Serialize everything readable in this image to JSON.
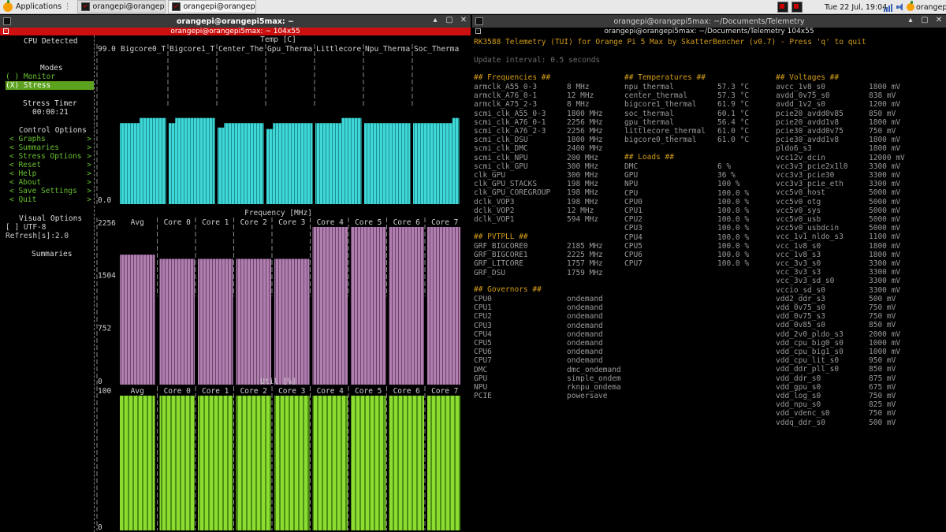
{
  "taskbar": {
    "applications_label": "Applications",
    "tasks": [
      "orangepi@orangepi5ma...",
      "orangepi@orangepi5ma..."
    ],
    "clock": "Tue 22 Jul, 19:04",
    "user": "orangepi"
  },
  "left_window": {
    "title": "orangepi@orangepi5max: ~",
    "subtitle": "orangepi@orangepi5max: ~ 104x55"
  },
  "right_window": {
    "title": "orangepi@orangepi5max: ~/Documents/Telemetry",
    "subtitle": "orangepi@orangepi5max: ~/Documents/Telemetry 104x55"
  },
  "menu": {
    "cpu_detected": "CPU Detected",
    "modes_title": "Modes",
    "monitor": "( ) Monitor",
    "stress": "(X) Stress",
    "stress_timer_title": "Stress Timer",
    "stress_timer": "00:00:21",
    "control_title": "Control Options",
    "controls": [
      "Graphs",
      "Summaries",
      "Stress Options",
      "Reset",
      "Help",
      "About",
      "Save Settings",
      "Quit"
    ],
    "visual_title": "Visual Options",
    "utf8": "[ ] UTF-8",
    "refresh": "Refresh[s]:2.0",
    "summaries_title": "Summaries"
  },
  "chart_data": [
    {
      "type": "bar",
      "title": "Temp [C]",
      "categories": [
        "Bigcore0_T",
        "Bigcore1_T",
        "Center_The",
        "Gpu_Therma",
        "Littlecore",
        "Npu_Therma",
        "Soc_Therma"
      ],
      "ytick_labels": [
        "99.0",
        "0.0"
      ],
      "ylim": [
        0,
        99
      ],
      "values": [
        [
          55.0,
          55.0,
          55.0,
          58.5,
          58.5,
          58.5,
          58.5
        ],
        [
          55.0,
          58.5,
          58.5,
          58.5,
          58.5,
          58.5,
          58.5
        ],
        [
          52.0,
          55.0,
          55.0,
          55.0,
          55.0,
          55.0,
          55.0
        ],
        [
          51.0,
          55.0,
          55.0,
          55.0,
          55.0,
          55.0,
          55.0
        ],
        [
          55.0,
          55.0,
          55.0,
          55.0,
          58.5,
          58.5,
          58.5
        ],
        [
          55.0,
          55.0,
          55.0,
          55.0,
          55.0,
          55.0,
          55.0
        ],
        [
          55.0,
          55.0,
          55.0,
          55.0,
          55.0,
          55.0,
          58.5
        ]
      ]
    },
    {
      "type": "bar",
      "title": "Frequency [MHz]",
      "categories": [
        "Avg",
        "Core 0",
        "Core 1",
        "Core 2",
        "Core 3",
        "Core 4",
        "Core 5",
        "Core 6",
        "Core 7"
      ],
      "ytick_labels": [
        "2256",
        "1504",
        "752",
        "0"
      ],
      "ylim": [
        0,
        2256
      ],
      "values": [
        1860,
        1800,
        1800,
        1800,
        1800,
        2256,
        2256,
        2256,
        2256
      ]
    },
    {
      "type": "bar",
      "title": "Util [%]",
      "categories": [
        "Avg",
        "Core 0",
        "Core 1",
        "Core 2",
        "Core 3",
        "Core 4",
        "Core 5",
        "Core 6",
        "Core 7"
      ],
      "ytick_labels": [
        "100",
        "0"
      ],
      "ylim": [
        0,
        100
      ],
      "values": [
        100,
        100,
        100,
        100,
        100,
        100,
        100,
        100,
        100
      ]
    }
  ],
  "telemetry": {
    "header": "RK3588 Telemetry (TUI) for Orange Pi 5 Max by SkatterBencher (v0.7) - Press 'q' to quit",
    "update_interval": "Update interval: 0.5 seconds",
    "frequencies_title": "## Frequencies ##",
    "frequencies": [
      [
        "armclk_A55_0-3",
        "8 MHz"
      ],
      [
        "armclk_A76_0-1",
        "12 MHz"
      ],
      [
        "armclk_A75_2-3",
        "8 MHz"
      ],
      [
        "scmi_clk_A55_0-3",
        "1800 MHz"
      ],
      [
        "scmi_clk_A76_0-1",
        "2256 MHz"
      ],
      [
        "scmi_clk_A76_2-3",
        "2256 MHz"
      ],
      [
        "scmi_clk_DSU",
        "1800 MHz"
      ],
      [
        "scmi_clk_DMC",
        "2400 MHz"
      ],
      [
        "scmi_clk_NPU",
        "200 MHz"
      ],
      [
        "scmi_clk_GPU",
        "300 MHz"
      ],
      [
        "clk_GPU",
        "300 MHz"
      ],
      [
        "clk_GPU_STACKS",
        "198 MHz"
      ],
      [
        "clk_GPU_COREGROUP",
        "198 MHz"
      ],
      [
        "dclk_VOP3",
        "198 MHz"
      ],
      [
        "dclk_VOP2",
        "12 MHz"
      ],
      [
        "dclk_VOP1",
        "594 MHz"
      ]
    ],
    "pvtpll_title": "## PVTPLL ##",
    "pvtpll": [
      [
        "GRF_BIGCORE0",
        "2185 MHz"
      ],
      [
        "GRF_BIGCORE1",
        "2225 MHz"
      ],
      [
        "GRF_LITCORE",
        "1757 MHz"
      ],
      [
        "GRF_DSU",
        "1759 MHz"
      ]
    ],
    "governors_title": "## Governors ##",
    "governors": [
      [
        "CPU0",
        "ondemand"
      ],
      [
        "CPU1",
        "ondemand"
      ],
      [
        "CPU2",
        "ondemand"
      ],
      [
        "CPU3",
        "ondemand"
      ],
      [
        "CPU4",
        "ondemand"
      ],
      [
        "CPU5",
        "ondemand"
      ],
      [
        "CPU6",
        "ondemand"
      ],
      [
        "CPU7",
        "ondemand"
      ],
      [
        "DMC",
        "dmc_ondemand"
      ],
      [
        "GPU",
        "simple_ondem"
      ],
      [
        "NPU",
        "rknpu_ondema"
      ],
      [
        "PCIE",
        "powersave"
      ]
    ],
    "temps_title": "## Temperatures ##",
    "temps": [
      [
        "npu_thermal",
        "57.3 °C"
      ],
      [
        "center_thermal",
        "57.3 °C"
      ],
      [
        "bigcore1_thermal",
        "61.9 °C"
      ],
      [
        "soc_thermal",
        "60.1 °C"
      ],
      [
        "gpu_thermal",
        "56.4 °C"
      ],
      [
        "littlecore_thermal",
        "61.0 °C"
      ],
      [
        "bigcore0_thermal",
        "61.0 °C"
      ]
    ],
    "loads_title": "## Loads ##",
    "loads": [
      [
        "DMC",
        "6 %"
      ],
      [
        "GPU",
        "36 %"
      ],
      [
        "NPU",
        "100 %"
      ],
      [
        "CPU",
        "100.0 %"
      ],
      [
        "CPU0",
        "100.0 %"
      ],
      [
        "CPU1",
        "100.0 %"
      ],
      [
        "CPU2",
        "100.0 %"
      ],
      [
        "CPU3",
        "100.0 %"
      ],
      [
        "CPU4",
        "100.0 %"
      ],
      [
        "CPU5",
        "100.0 %"
      ],
      [
        "CPU6",
        "100.0 %"
      ],
      [
        "CPU7",
        "100.0 %"
      ]
    ],
    "voltages_title": "## Voltages ##",
    "voltages": [
      [
        "avcc_1v8_s0",
        "1800 mV"
      ],
      [
        "avdd_0v75_s0",
        "838 mV"
      ],
      [
        "avdd_1v2_s0",
        "1200 mV"
      ],
      [
        "pcie20_avdd0v85",
        "850 mV"
      ],
      [
        "pcie20_avdd1v8",
        "1800 mV"
      ],
      [
        "pcie30_avdd0v75",
        "750 mV"
      ],
      [
        "pcie30_avdd1v8",
        "1800 mV"
      ],
      [
        "pldo6_s3",
        "1800 mV"
      ],
      [
        "vcc12v_dcin",
        "12000 mV"
      ],
      [
        "vcc3v3_pcie2x1l0",
        "3300 mV"
      ],
      [
        "vcc3v3_pcie30",
        "3300 mV"
      ],
      [
        "vcc3v3_pcie_eth",
        "3300 mV"
      ],
      [
        "vcc5v0_host",
        "5000 mV"
      ],
      [
        "vcc5v0_otg",
        "5000 mV"
      ],
      [
        "vcc5v0_sys",
        "5000 mV"
      ],
      [
        "vcc5v0_usb",
        "5000 mV"
      ],
      [
        "vcc5v0_usbdcin",
        "5000 mV"
      ],
      [
        "vcc_1v1_nldo_s3",
        "1100 mV"
      ],
      [
        "vcc_1v8_s0",
        "1800 mV"
      ],
      [
        "vcc_1v8_s3",
        "1800 mV"
      ],
      [
        "vcc_3v3_s0",
        "3300 mV"
      ],
      [
        "vcc_3v3_s3",
        "3300 mV"
      ],
      [
        "vcc_3v3_sd_s0",
        "3300 mV"
      ],
      [
        "vccio_sd_s0",
        "3300 mV"
      ],
      [
        "vdd2_ddr_s3",
        "500 mV"
      ],
      [
        "vdd_0v75_s0",
        "750 mV"
      ],
      [
        "vdd_0v75_s3",
        "750 mV"
      ],
      [
        "vdd_0v85_s0",
        "850 mV"
      ],
      [
        "vdd_2v0_pldo_s3",
        "2000 mV"
      ],
      [
        "vdd_cpu_big0_s0",
        "1000 mV"
      ],
      [
        "vdd_cpu_big1_s0",
        "1000 mV"
      ],
      [
        "vdd_cpu_lit_s0",
        "950 mV"
      ],
      [
        "vdd_ddr_pll_s0",
        "850 mV"
      ],
      [
        "vdd_ddr_s0",
        "875 mV"
      ],
      [
        "vdd_gpu_s0",
        "675 mV"
      ],
      [
        "vdd_log_s0",
        "750 mV"
      ],
      [
        "vdd_npu_s0",
        "825 mV"
      ],
      [
        "vdd_vdenc_s0",
        "750 mV"
      ],
      [
        "vddq_ddr_s0",
        "500 mV"
      ]
    ]
  },
  "colors": {
    "temp_bar": "#3fd7d7",
    "freq_bar": "#b07fb0",
    "util_bar": "#8ddc32",
    "accent_orange": "#d39c19",
    "menu_green": "#67c22f",
    "title_red": "#cc1010"
  },
  "icons": [
    "orange-logo-icon",
    "terminal-icon",
    "network-icon",
    "volume-icon",
    "minimize-icon",
    "maximize-icon",
    "close-icon",
    "new-tab-icon"
  ]
}
